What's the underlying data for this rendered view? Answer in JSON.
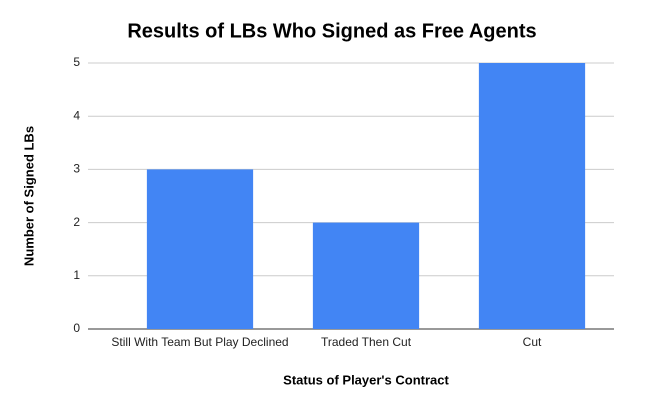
{
  "chart_data": {
    "type": "bar",
    "title": "Results of LBs Who Signed as Free Agents",
    "x_label": "Status of Player's Contract",
    "y_label": "Number of Signed LBs",
    "categories": [
      "Still With Team But Play Declined",
      "Traded Then Cut",
      "Cut"
    ],
    "values": [
      3,
      2,
      5
    ],
    "color": "#4285f4",
    "ylim": [
      0,
      5
    ],
    "yticks": [
      0,
      1,
      2,
      3,
      4,
      5
    ],
    "grid": true
  }
}
